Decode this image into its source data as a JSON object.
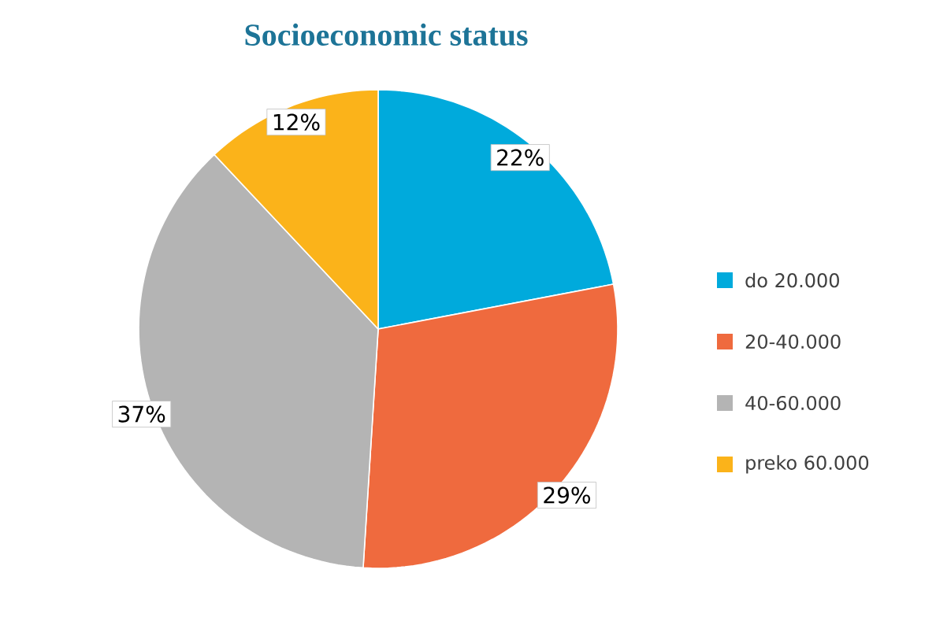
{
  "chart_data": {
    "type": "pie",
    "title": "Socioeconomic status",
    "categories": [
      "do 20.000",
      "20-40.000",
      "40-60.000",
      "preko 60.000"
    ],
    "values": [
      22,
      29,
      37,
      12
    ],
    "colors": [
      "#00aadc",
      "#ef6a3e",
      "#b4b4b4",
      "#fbb31a"
    ],
    "value_labels": [
      "22%",
      "29%",
      "37%",
      "12%"
    ],
    "legend": "right"
  }
}
